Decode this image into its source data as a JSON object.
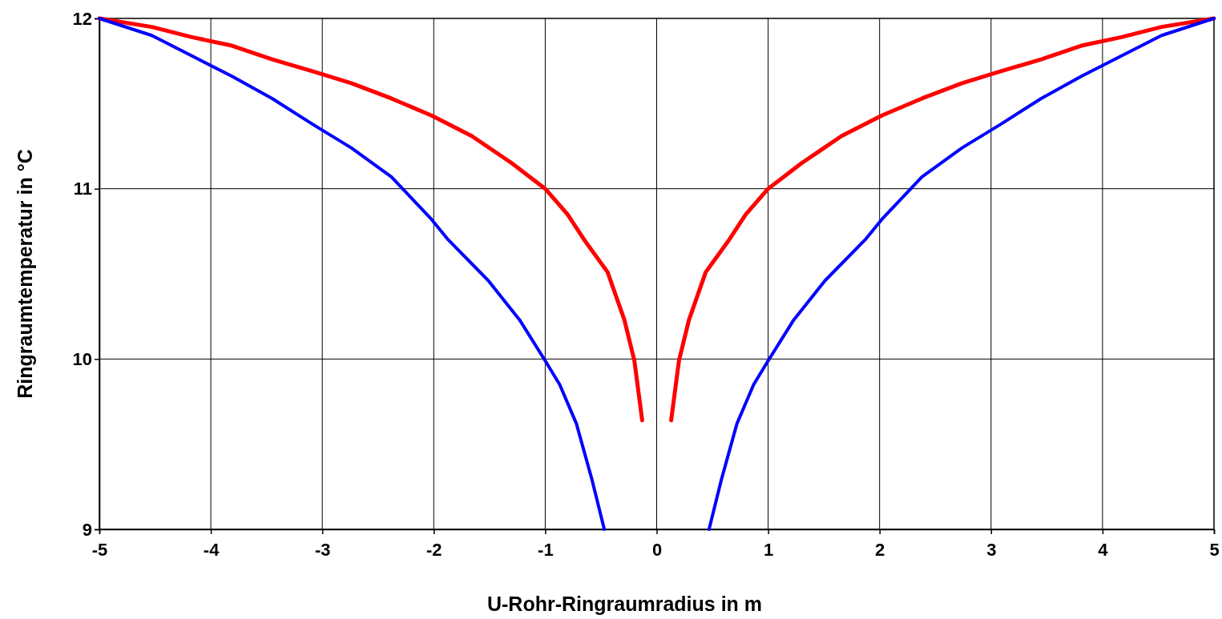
{
  "chart_data": {
    "type": "line",
    "xlabel": "U-Rohr-Ringraumradius in m",
    "ylabel": "Ringraumtemperatur in °C",
    "xlim": [
      -5,
      5
    ],
    "ylim": [
      9,
      12
    ],
    "xticks": [
      -5,
      -4,
      -3,
      -2,
      -1,
      0,
      1,
      2,
      3,
      4,
      5
    ],
    "yticks": [
      9,
      10,
      11,
      12
    ],
    "grid": true,
    "marker": "none",
    "line_style": "solid",
    "series": [
      {
        "color": "#ff0000",
        "x": [
          -5,
          -4.53,
          -4.17,
          -3.81,
          -3.45,
          -3.09,
          -2.74,
          -2.38,
          -2.02,
          -1.66,
          -1.3,
          -1,
          -0.8,
          -0.65,
          -0.44,
          -0.29,
          -0.2,
          -0.13
        ],
        "values": [
          12,
          11.95,
          11.89,
          11.84,
          11.76,
          11.69,
          11.62,
          11.53,
          11.43,
          11.31,
          11.15,
          11,
          10.85,
          10.7,
          10.51,
          10.23,
          9.99,
          9.64
        ]
      },
      {
        "color": "#ff0000",
        "x": [
          0.13,
          0.2,
          0.29,
          0.44,
          0.65,
          0.8,
          1,
          1.3,
          1.66,
          2.02,
          2.38,
          2.74,
          3.09,
          3.45,
          3.81,
          4.17,
          4.53,
          5
        ],
        "values": [
          9.64,
          9.99,
          10.23,
          10.51,
          10.7,
          10.85,
          11,
          11.15,
          11.31,
          11.43,
          11.53,
          11.62,
          11.69,
          11.76,
          11.84,
          11.89,
          11.95,
          12
        ]
      },
      {
        "color": "#0000ff",
        "x": [
          -5,
          -4.53,
          -4.17,
          -3.81,
          -3.45,
          -3.09,
          -2.74,
          -2.38,
          -2.02,
          -1.87,
          -1.51,
          -1.23,
          -1,
          -0.87,
          -0.72,
          -0.58,
          -0.47
        ],
        "values": [
          12,
          11.9,
          11.78,
          11.66,
          11.53,
          11.38,
          11.24,
          11.07,
          10.82,
          10.7,
          10.46,
          10.23,
          9.99,
          9.85,
          9.62,
          9.29,
          9
        ]
      },
      {
        "color": "#0000ff",
        "x": [
          0.47,
          0.58,
          0.72,
          0.87,
          1,
          1.23,
          1.51,
          1.87,
          2.02,
          2.38,
          2.74,
          3.09,
          3.45,
          3.81,
          4.17,
          4.53,
          5
        ],
        "values": [
          9,
          9.29,
          9.62,
          9.85,
          9.99,
          10.23,
          10.46,
          10.7,
          10.82,
          11.07,
          11.24,
          11.38,
          11.53,
          11.66,
          11.78,
          11.9,
          12
        ]
      }
    ]
  }
}
